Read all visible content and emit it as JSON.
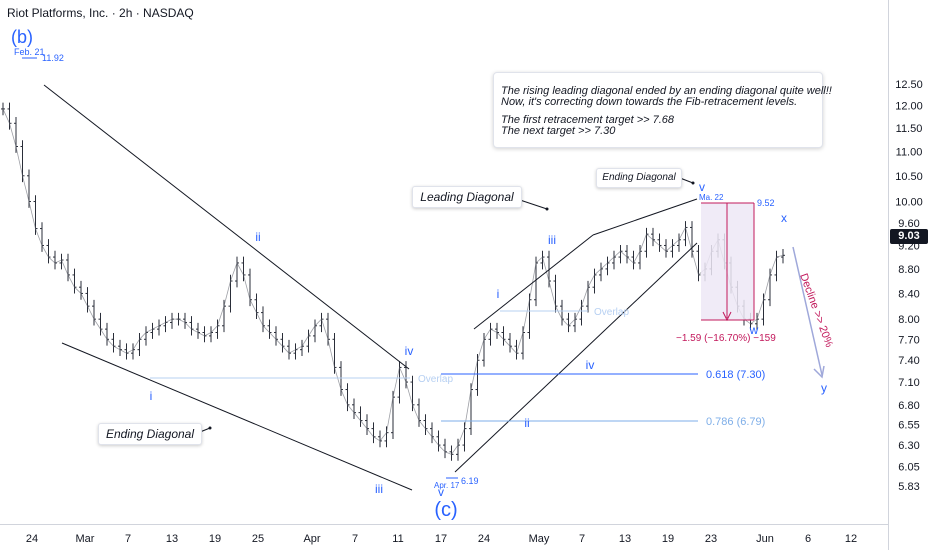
{
  "header": {
    "title": "Riot Platforms, Inc. · 2h · NASDAQ"
  },
  "current_price": "9.03",
  "colors": {
    "wave_blue": "#2962ff",
    "fib_blue": "#2962ff",
    "fib_light": "#7eaee8",
    "overlap_light": "#b7d0f2",
    "decline_pink": "#c2185b",
    "decline_arrow": "#9fa8da",
    "box_fill": "#ede7f6",
    "trendline": "#131722",
    "candle": "#2a2e39"
  },
  "chart_data": {
    "type": "line",
    "title": "Riot Platforms, Inc. · 2h · NASDAQ",
    "y_scale": "log",
    "ylim": [
      5.7,
      12.8
    ],
    "y_ticks": [
      "12.50",
      "12.00",
      "11.50",
      "11.00",
      "10.50",
      "10.00",
      "9.60",
      "9.20",
      "8.80",
      "8.40",
      "8.00",
      "7.70",
      "7.40",
      "7.10",
      "6.80",
      "6.55",
      "6.30",
      "6.05",
      "5.83"
    ],
    "x_ticks": [
      "24",
      "Mar",
      "7",
      "13",
      "19",
      "25",
      "Apr",
      "7",
      "11",
      "17",
      "24",
      "May",
      "7",
      "13",
      "19",
      "23",
      "Jun",
      "6",
      "12"
    ],
    "grid": false,
    "series": [
      {
        "values": [
          11.92,
          11.6,
          11.1,
          10.5,
          10.0,
          9.5,
          9.2,
          9.0,
          8.9,
          8.95,
          8.7,
          8.5,
          8.4,
          8.2,
          8.0,
          7.85,
          7.7,
          7.6,
          7.55,
          7.5,
          7.55,
          7.7,
          7.8,
          7.85,
          7.9,
          7.95,
          8.0,
          8.0,
          7.95,
          7.85,
          7.8,
          7.75,
          7.8,
          7.9,
          8.2,
          8.6,
          8.9,
          8.7,
          8.3,
          8.1,
          7.9,
          7.8,
          7.7,
          7.6,
          7.5,
          7.55,
          7.6,
          7.75,
          7.9,
          8.0,
          7.7,
          7.3,
          7.0,
          6.8,
          6.7,
          6.6,
          6.5,
          6.4,
          6.35,
          6.45,
          6.9,
          7.3,
          7.1,
          6.8,
          6.6,
          6.5,
          6.4,
          6.3,
          6.22,
          6.19,
          6.3,
          6.5,
          7.0,
          7.4,
          7.7,
          7.85,
          7.8,
          7.7,
          7.6,
          7.5,
          7.8,
          8.3,
          8.9,
          9.0,
          8.6,
          8.2,
          8.0,
          7.9,
          8.0,
          8.2,
          8.5,
          8.7,
          8.8,
          8.9,
          9.0,
          9.1,
          9.0,
          8.9,
          9.1,
          9.4,
          9.3,
          9.2,
          9.1,
          9.2,
          9.3,
          9.52,
          9.1,
          8.7,
          8.8,
          9.1,
          9.3,
          8.9,
          8.5,
          8.2,
          8.0,
          7.93,
          8.0,
          8.3,
          8.7,
          9.0,
          9.03
        ]
      }
    ],
    "annotations": {
      "wave_labels": [
        "(b)",
        "ii",
        "i",
        "iii",
        "iv",
        "v",
        "(c)",
        "i",
        "ii",
        "iii",
        "iv",
        "v",
        "w",
        "x",
        "y"
      ],
      "price_labels": [
        "11.92",
        "6.19",
        "9.52"
      ],
      "date_labels": [
        "Feb. 21",
        "Apr. 17",
        "Ma. 22"
      ],
      "fib_levels": [
        {
          "label": "0.618 (7.30)",
          "value": 7.3
        },
        {
          "label": "0.786 (6.79)",
          "value": 6.79
        }
      ],
      "overlap_label": "Overlap",
      "measure_label": "−1.59 (−16.70%) −159",
      "decline_label": "Decline >> 20%",
      "ending_diagonal_label": "Ending Diagonal",
      "leading_diagonal_label": "Leading Diagonal"
    }
  },
  "note": {
    "line1": "The rising leading diagonal ended by an ending diagonal quite well!!",
    "line2": " Now, it's correcting down towards the Fib-retracement levels.",
    "line3": "The first retracement target >> 7.68",
    "line4": "The next target >>  7.30"
  }
}
